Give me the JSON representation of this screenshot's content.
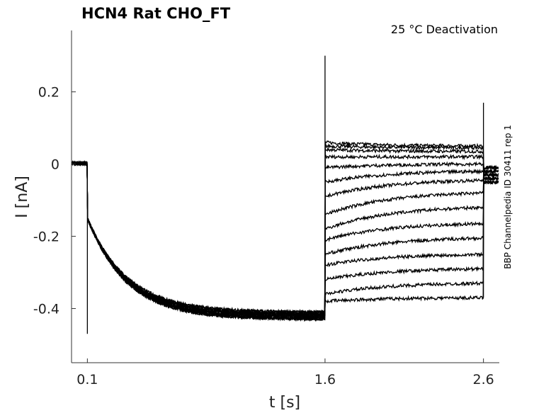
{
  "chart_data": {
    "type": "line",
    "title": "HCN4  Rat  CHO_FT",
    "annotation": "25 °C  Deactivation",
    "side_label": "BBP Channelpedia ID 30411 rep 1",
    "xlabel": "t [s]",
    "ylabel": "I [nA]",
    "xlim": [
      0.0,
      2.7
    ],
    "ylim": [
      -0.55,
      0.37
    ],
    "xticks": [
      0.1,
      1.6,
      2.6
    ],
    "xtick_labels": [
      "0.1",
      "1.6",
      "2.6"
    ],
    "yticks": [
      0.2,
      0,
      -0.2,
      -0.4
    ],
    "ytick_labels": [
      "0.2",
      "0",
      "-0.2",
      "-0.4"
    ],
    "grid": false,
    "legend": "none",
    "protocol": {
      "baseline": 0.0,
      "step1_start": 0.1,
      "step2_start": 1.6,
      "step2_end": 2.6,
      "hold_steady": -0.42,
      "tau_activation_s": 0.25,
      "step2_start_levels": [
        0.06,
        0.05,
        0.04,
        0.02,
        -0.01,
        -0.05,
        -0.09,
        -0.14,
        -0.18,
        -0.21,
        -0.25,
        -0.28,
        -0.32,
        -0.36,
        -0.38
      ],
      "step2_end_levels": [
        0.05,
        0.045,
        0.035,
        0.02,
        0.0,
        -0.02,
        -0.045,
        -0.08,
        -0.12,
        -0.165,
        -0.205,
        -0.25,
        -0.29,
        -0.33,
        -0.37
      ],
      "tail_levels": [
        -0.01,
        -0.02,
        -0.03,
        -0.04,
        -0.05
      ]
    },
    "transients": {
      "x": [
        0.1,
        1.6,
        2.6
      ],
      "peak": [
        -0.47,
        0.3,
        0.17
      ]
    }
  }
}
